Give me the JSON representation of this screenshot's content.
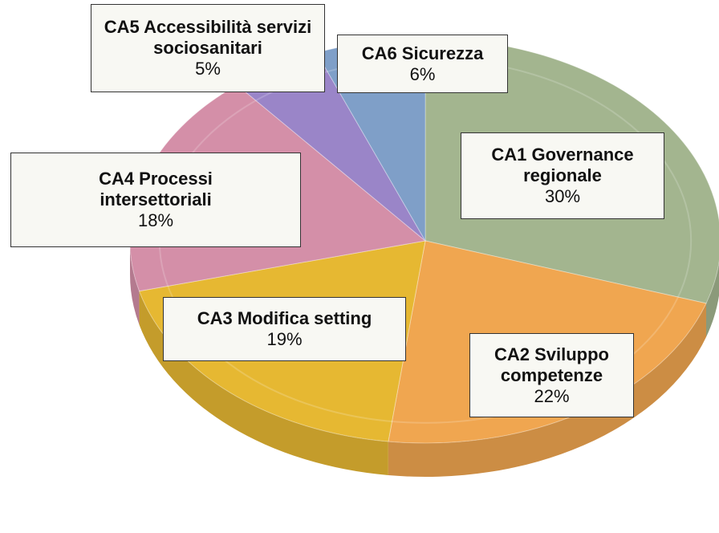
{
  "chart_data": {
    "type": "pie",
    "categories": [
      "CA1 Governance regionale",
      "CA2 Sviluppo competenze",
      "CA3 Modifica setting",
      "CA4 Processi intersettoriali",
      "CA5 Accessibilità servizi sociosanitari",
      "CA6 Sicurezza"
    ],
    "values": [
      30,
      22,
      19,
      18,
      5,
      6
    ],
    "value_labels": [
      "30%",
      "22%",
      "19%",
      "18%",
      "5%",
      "6%"
    ],
    "colors": [
      "#a3b58f",
      "#f0a650",
      "#e6b832",
      "#d48fa8",
      "#9a85c8",
      "#7f9fc8"
    ]
  }
}
